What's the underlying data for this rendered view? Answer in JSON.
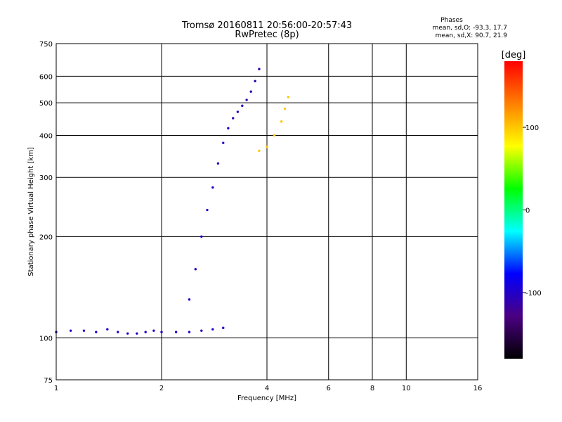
{
  "chart_data": {
    "type": "scatter",
    "title": "Tromsø 20160811 20:56:00-20:57:43",
    "subtitle": "RwPretec (8p)",
    "xlabel": "Frequency [MHz]",
    "ylabel": "Stationary phase Virtual Height [km]",
    "x_scale": "log",
    "y_scale": "log",
    "xlim": [
      1,
      16
    ],
    "ylim": [
      75,
      750
    ],
    "x_ticks": [
      1,
      2,
      4,
      6,
      8,
      10,
      16
    ],
    "y_ticks": [
      75,
      100,
      200,
      300,
      400,
      500,
      600,
      750
    ],
    "grid": true,
    "colorbar": {
      "label": "[deg]",
      "range": [
        -180,
        180
      ],
      "ticks": [
        100,
        0,
        -100
      ],
      "colors": [
        "#000000",
        "#4b0082",
        "#0000ff",
        "#00ffff",
        "#00ff00",
        "#ffff00",
        "#ff8000",
        "#ff0000"
      ]
    },
    "stats": {
      "header": "Phases",
      "o_line": "mean, sd,O: -93.3, 17.7",
      "x_line": "mean, sd,X:  90.7, 21.9"
    },
    "series": [
      {
        "trace": "F-lower",
        "x": [
          1.0,
          1.1,
          1.2,
          1.3,
          1.4,
          1.5,
          1.6,
          1.7,
          1.8,
          1.9,
          2.0,
          2.2,
          2.4,
          2.6,
          2.8,
          3.0
        ],
        "y": [
          104,
          105,
          105,
          104,
          106,
          104,
          103,
          103,
          104,
          105,
          104,
          104,
          104,
          105,
          106,
          107
        ],
        "phase": [
          -100,
          -100,
          -100,
          -100,
          -100,
          -100,
          -100,
          -100,
          -100,
          -100,
          -100,
          -100,
          -100,
          -100,
          -100,
          -100
        ]
      },
      {
        "trace": "F-upper",
        "x": [
          2.4,
          2.5,
          2.6,
          2.7,
          2.8,
          2.9,
          3.0,
          3.1,
          3.2,
          3.3,
          3.4,
          3.5,
          3.6,
          3.7,
          3.8
        ],
        "y": [
          130,
          160,
          200,
          240,
          280,
          330,
          380,
          420,
          450,
          470,
          490,
          510,
          540,
          580,
          630
        ],
        "phase": [
          -100,
          -100,
          -100,
          -100,
          -100,
          -100,
          -100,
          -100,
          -110,
          -110,
          -110,
          -110,
          -110,
          -110,
          -110
        ]
      },
      {
        "trace": "X-mode",
        "x": [
          3.8,
          4.0,
          4.2,
          4.4,
          4.5,
          4.6
        ],
        "y": [
          360,
          370,
          400,
          440,
          480,
          520
        ],
        "phase": [
          100,
          100,
          100,
          100,
          100,
          100
        ]
      }
    ]
  }
}
